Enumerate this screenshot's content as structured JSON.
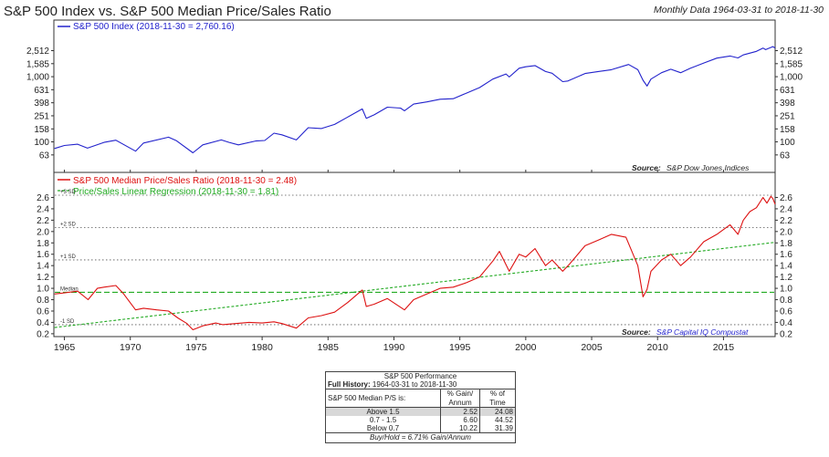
{
  "header": {
    "title": "S&P 500 Index vs. S&P 500 Median Price/Sales Ratio",
    "subtitle": "Monthly Data 1964-03-31 to 2018-11-30"
  },
  "top_panel": {
    "legend": "S&P 500 Index (2018-11-30 = 2,760.16)",
    "source_label": "Source:",
    "source_text": "S&P Dow Jones Indices"
  },
  "bottom_panel": {
    "legend_ps": "S&P 500 Median Price/Sales Ratio (2018-11-30 = 2.48)",
    "legend_reg": "Price/Sales Linear Regression (2018-11-30 = 1.81)",
    "source_label": "Source:",
    "source_text": "S&P Capital IQ Compustat",
    "sd_labels": [
      "+3 SD",
      "+2 SD",
      "+1 SD",
      "Median",
      "-1 SD"
    ]
  },
  "perf_table": {
    "title": "S&P 500 Performance",
    "history_label": "Full History:",
    "history_range": "1964-03-31 to 2018-11-30",
    "row_header": "S&P 500 Median P/S is:",
    "col1_header": "% Gain/ Annum",
    "col2_header": "% of Time",
    "rows": [
      {
        "label": "Above 1.5",
        "gain": "2.52",
        "time": "24.08"
      },
      {
        "label": "0.7 - 1.5",
        "gain": "6.60",
        "time": "44.52"
      },
      {
        "label": "Below 0.7",
        "gain": "10.22",
        "time": "31.39"
      }
    ],
    "footer": "Buy/Hold = 6.71% Gain/Annum"
  },
  "colors": {
    "sp500": "#2222cc",
    "ps_ratio": "#dd1111",
    "regression": "#22aa22",
    "median_line": "#22aa22",
    "sd_lines": "#555555"
  },
  "chart_data": [
    {
      "type": "line",
      "name": "S&P 500 Index",
      "yscale": "log",
      "yticks": [
        63,
        100,
        158,
        251,
        398,
        631,
        1000,
        1585,
        2512
      ],
      "ylim": [
        50,
        3200
      ],
      "xlim": [
        1964.2,
        2018.92
      ],
      "series": [
        {
          "name": "S&P 500 Index (2018-11-30 = 2,760.16)",
          "x": [
            1964.25,
            1965.0,
            1966.0,
            1966.75,
            1968.0,
            1968.9,
            1970.4,
            1971.0,
            1972.9,
            1973.5,
            1974.75,
            1975.5,
            1976.9,
            1977.5,
            1978.2,
            1979.5,
            1980.2,
            1980.9,
            1981.5,
            1982.6,
            1983.5,
            1984.5,
            1985.5,
            1986.5,
            1987.6,
            1987.9,
            1988.5,
            1989.5,
            1990.5,
            1990.8,
            1991.5,
            1992.5,
            1993.5,
            1994.5,
            1995.5,
            1996.5,
            1997.5,
            1998.5,
            1998.75,
            1999.5,
            2000.0,
            2000.7,
            2001.5,
            2002.0,
            2002.8,
            2003.2,
            2004.5,
            2005.5,
            2006.5,
            2007.8,
            2008.5,
            2008.9,
            2009.2,
            2009.5,
            2010.3,
            2011.0,
            2011.75,
            2012.5,
            2013.5,
            2014.5,
            2015.5,
            2016.1,
            2016.5,
            2017.5,
            2018.0,
            2018.2,
            2018.75,
            2018.92
          ],
          "y": [
            79,
            88,
            92,
            80,
            98,
            106,
            72,
            96,
            118,
            104,
            68,
            90,
            107,
            98,
            90,
            103,
            105,
            136,
            128,
            107,
            165,
            160,
            185,
            240,
            320,
            230,
            260,
            340,
            330,
            300,
            380,
            410,
            450,
            460,
            560,
            680,
            920,
            1100,
            990,
            1350,
            1420,
            1480,
            1200,
            1130,
            840,
            860,
            1120,
            1200,
            1280,
            1540,
            1280,
            880,
            720,
            920,
            1150,
            1300,
            1150,
            1350,
            1620,
            1930,
            2080,
            1940,
            2160,
            2450,
            2750,
            2600,
            2900,
            2760
          ]
        }
      ]
    },
    {
      "type": "line",
      "name": "S&P 500 Median Price/Sales Ratio",
      "yticks": [
        0.2,
        0.4,
        0.6,
        0.8,
        1.0,
        1.2,
        1.4,
        1.6,
        1.8,
        2.0,
        2.2,
        2.4,
        2.6
      ],
      "ylim": [
        0.15,
        2.72
      ],
      "xlim": [
        1964.2,
        2018.92
      ],
      "xticks": [
        1965,
        1970,
        1975,
        1980,
        1985,
        1990,
        1995,
        2000,
        2005,
        2010,
        2015
      ],
      "reference_lines": {
        "plus3sd": 2.64,
        "plus2sd": 2.07,
        "plus1sd": 1.5,
        "median": 0.93,
        "minus1sd": 0.36
      },
      "series": [
        {
          "name": "S&P 500 Median Price/Sales Ratio (2018-11-30 = 2.48)",
          "x": [
            1964.25,
            1965.0,
            1966.0,
            1966.8,
            1967.5,
            1968.0,
            1968.9,
            1969.5,
            1970.4,
            1971.0,
            1972.0,
            1972.9,
            1973.6,
            1974.3,
            1974.75,
            1975.5,
            1976.5,
            1977.0,
            1978.0,
            1979.0,
            1980.0,
            1980.9,
            1981.5,
            1982.6,
            1983.5,
            1984.5,
            1985.5,
            1986.5,
            1987.6,
            1987.9,
            1988.5,
            1989.5,
            1990.8,
            1991.5,
            1992.5,
            1993.5,
            1994.5,
            1995.5,
            1996.5,
            1997.5,
            1998.0,
            1998.75,
            1999.5,
            2000.0,
            2000.7,
            2001.5,
            2002.0,
            2002.8,
            2003.3,
            2004.5,
            2005.5,
            2006.5,
            2007.6,
            2008.5,
            2008.9,
            2009.2,
            2009.5,
            2010.3,
            2011.0,
            2011.75,
            2012.5,
            2013.5,
            2014.5,
            2015.5,
            2016.1,
            2016.5,
            2017.0,
            2017.5,
            2018.0,
            2018.3,
            2018.6,
            2018.75,
            2018.92
          ],
          "y": [
            0.9,
            0.92,
            0.95,
            0.8,
            1.0,
            1.02,
            1.05,
            0.9,
            0.62,
            0.65,
            0.62,
            0.6,
            0.48,
            0.38,
            0.27,
            0.34,
            0.39,
            0.36,
            0.38,
            0.4,
            0.39,
            0.41,
            0.38,
            0.3,
            0.48,
            0.52,
            0.58,
            0.75,
            0.97,
            0.68,
            0.72,
            0.82,
            0.62,
            0.8,
            0.9,
            1.0,
            1.02,
            1.1,
            1.2,
            1.48,
            1.65,
            1.3,
            1.6,
            1.55,
            1.7,
            1.4,
            1.5,
            1.3,
            1.42,
            1.75,
            1.85,
            1.95,
            1.9,
            1.4,
            0.85,
            0.98,
            1.3,
            1.5,
            1.6,
            1.4,
            1.55,
            1.82,
            1.95,
            2.12,
            1.95,
            2.2,
            2.35,
            2.42,
            2.6,
            2.5,
            2.62,
            2.58,
            2.48
          ]
        },
        {
          "name": "Price/Sales Linear Regression (2018-11-30 = 1.81)",
          "x": [
            1964.25,
            2018.92
          ],
          "y": [
            0.31,
            1.81
          ]
        }
      ]
    }
  ]
}
